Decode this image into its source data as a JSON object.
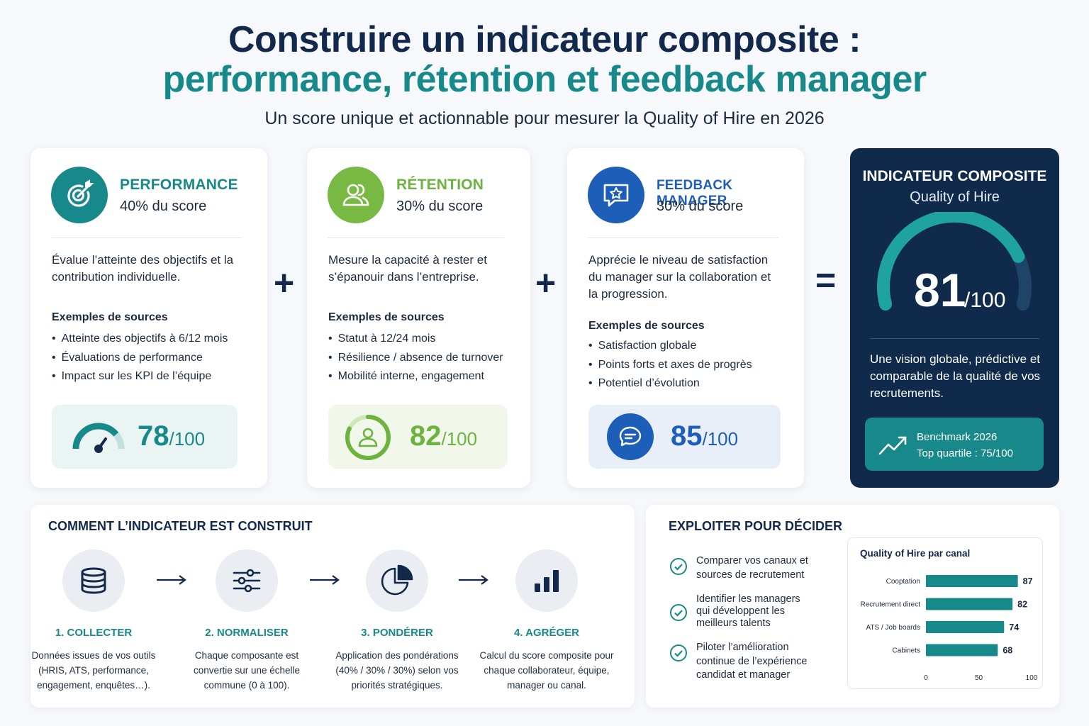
{
  "header": {
    "title_line1": "Construire un indicateur composite :",
    "title_line2": "performance, rétention et feedback manager",
    "subtitle": "Un score unique et actionnable pour mesurer la Quality of Hire en 2026"
  },
  "components": [
    {
      "title": "PERFORMANCE",
      "weight": "40% du score",
      "description": "Évalue l’atteinte des objectifs et la contribution individuelle.",
      "sources_label": "Exemples de sources",
      "sources": [
        "Atteinte des objectifs à 6/12 mois",
        "Évaluations de performance",
        "Impact sur les KPI de l’équipe"
      ],
      "score": "78",
      "score_suffix": "/100",
      "score_value": 78,
      "color": "#17898a",
      "icon": "target-icon"
    },
    {
      "title": "RÉTENTION",
      "weight": "30% du score",
      "description": "Mesure la capacité à rester et s’épanouir dans l’entreprise.",
      "sources_label": "Exemples de sources",
      "sources": [
        "Statut à 12/24 mois",
        "Résilience / absence de turnover",
        "Mobilité interne, engagement"
      ],
      "score": "82",
      "score_suffix": "/100",
      "score_value": 82,
      "color": "#6db33f",
      "icon": "users-icon"
    },
    {
      "title": "FEEDBACK MANAGER",
      "weight": "30% du score",
      "description": "Apprécie le niveau de satisfaction du manager sur la collaboration et la progression.",
      "sources_label": "Exemples de sources",
      "sources": [
        "Satisfaction globale",
        "Points forts et axes de progrès",
        "Potentiel d’évolution"
      ],
      "score": "85",
      "score_suffix": "/100",
      "score_value": 85,
      "color": "#1d5fb8",
      "icon": "star-chat-icon"
    }
  ],
  "operators": {
    "plus": "+",
    "equals": "="
  },
  "composite": {
    "title": "INDICATEUR COMPOSITE",
    "subtitle": "Quality of Hire",
    "score": "81",
    "score_suffix": "/100",
    "score_value": 81,
    "description": "Une vision globale, prédictive et comparable de la qualité de vos recrutements.",
    "benchmark_line1": "Benchmark 2026",
    "benchmark_line2": "Top quartile : 75/100"
  },
  "construction": {
    "title": "COMMENT L’INDICATEUR EST CONSTRUIT",
    "steps": [
      {
        "title": "1. COLLECTER",
        "description": "Données issues de vos outils (HRIS, ATS, performance, engagement, enquêtes…).",
        "icon": "database-icon"
      },
      {
        "title": "2. NORMALISER",
        "description": "Chaque composante est convertie sur une échelle commune (0 à 100).",
        "icon": "sliders-icon"
      },
      {
        "title": "3. PONDÉRER",
        "description": "Application des pondérations (40% / 30% / 30%) selon vos priorités stratégiques.",
        "icon": "pie-chart-icon"
      },
      {
        "title": "4. AGRÉGER",
        "description": "Calcul du score composite pour chaque collaborateur, équipe, manager ou canal.",
        "icon": "bar-chart-icon"
      }
    ]
  },
  "decide": {
    "title": "EXPLOITER POUR DÉCIDER",
    "uses": [
      "Comparer vos canaux et sources de recrutement",
      "Identifier les managers qui développent les meilleurs talents",
      "Piloter l’amélioration continue de l’expérience candidat et manager"
    ]
  },
  "chart_data": {
    "type": "bar",
    "orientation": "horizontal",
    "title": "Quality of Hire par canal",
    "categories": [
      "Cooptation",
      "Recrutement direct",
      "ATS / Job boards",
      "Cabinets"
    ],
    "values": [
      87,
      82,
      74,
      68
    ],
    "xlim": [
      0,
      100
    ],
    "xticks": [
      0,
      50,
      100
    ],
    "grid": false,
    "bar_color": "#17898a"
  }
}
